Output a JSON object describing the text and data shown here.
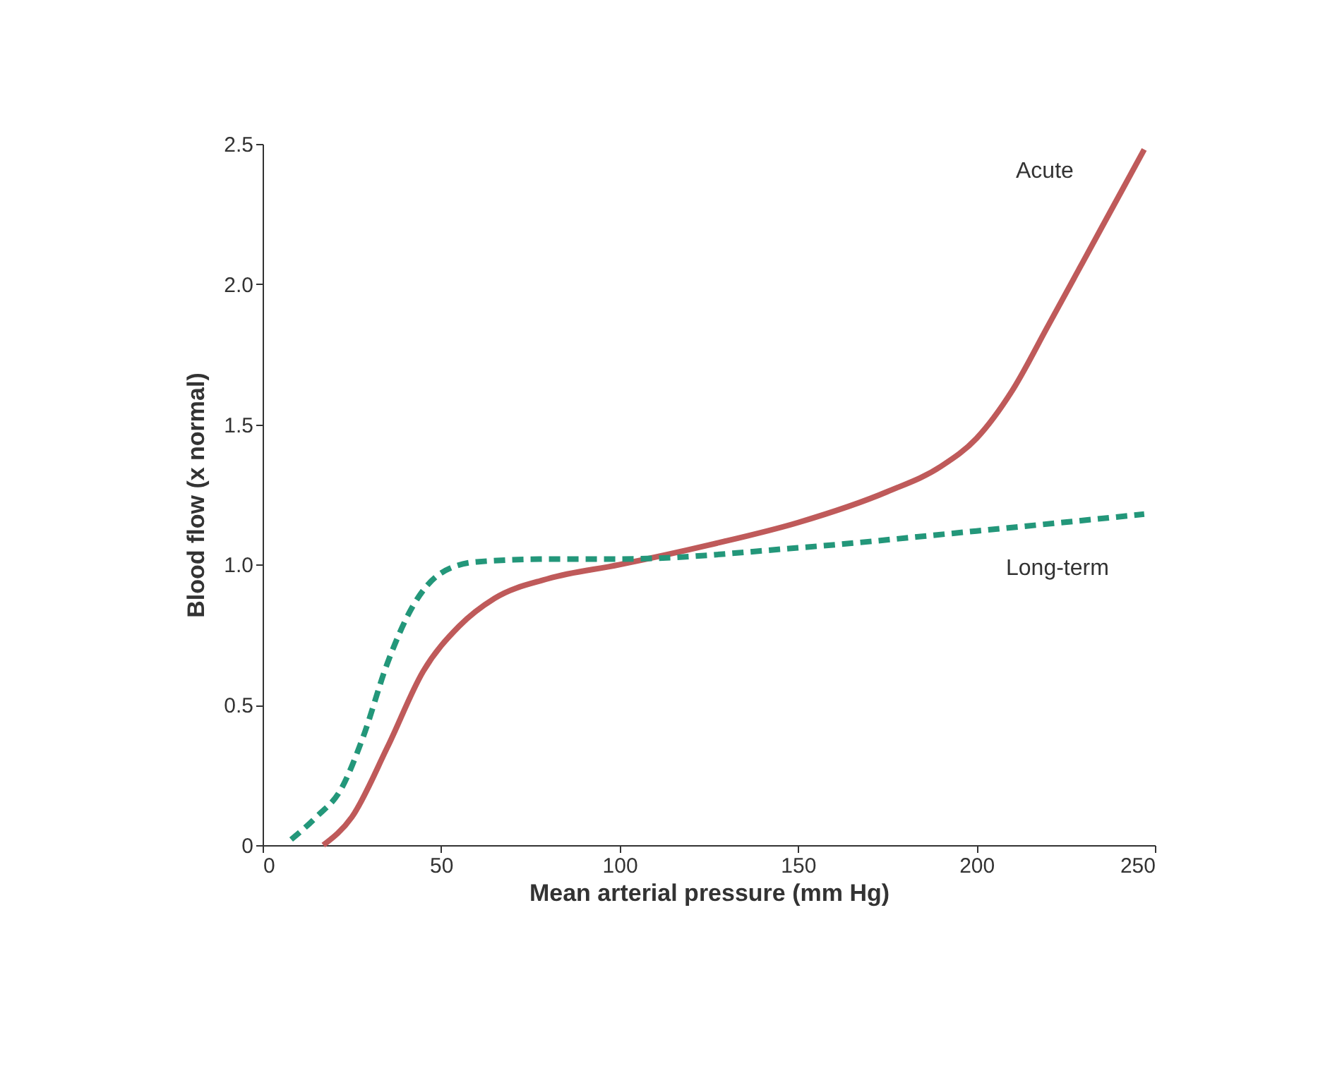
{
  "chart_data": {
    "type": "line",
    "xlabel": "Mean arterial pressure (mm Hg)",
    "ylabel": "Blood flow (x normal)",
    "xlim": [
      0,
      250
    ],
    "xticks": [
      0,
      50,
      100,
      150,
      200,
      250
    ],
    "ylim": [
      0,
      2.5
    ],
    "yticks": [
      {
        "value": 0,
        "label": "0"
      },
      {
        "value": 0.5,
        "label": "0.5"
      },
      {
        "value": 1.0,
        "label": "1.0"
      },
      {
        "value": 1.5,
        "label": "1.5"
      },
      {
        "value": 2.0,
        "label": "2.0"
      },
      {
        "value": 2.5,
        "label": "2.5"
      }
    ],
    "grid": false,
    "series": [
      {
        "name": "Acute",
        "color": "#bf5a5a",
        "line_style": "solid",
        "x": [
          17,
          25,
          35,
          45,
          55,
          65,
          80,
          100,
          125,
          150,
          175,
          190,
          200,
          210,
          220,
          235,
          247
        ],
        "values": [
          0,
          0.1,
          0.35,
          0.62,
          0.78,
          0.88,
          0.95,
          1.0,
          1.07,
          1.15,
          1.26,
          1.35,
          1.45,
          1.62,
          1.85,
          2.2,
          2.48
        ]
      },
      {
        "name": "Long-term",
        "color": "#23977a",
        "line_style": "dashed",
        "x": [
          8,
          15,
          22,
          28,
          35,
          42,
          50,
          60,
          80,
          100,
          150,
          200,
          247
        ],
        "values": [
          0.02,
          0.1,
          0.2,
          0.38,
          0.65,
          0.85,
          0.97,
          1.01,
          1.02,
          1.02,
          1.06,
          1.12,
          1.18
        ]
      }
    ]
  }
}
